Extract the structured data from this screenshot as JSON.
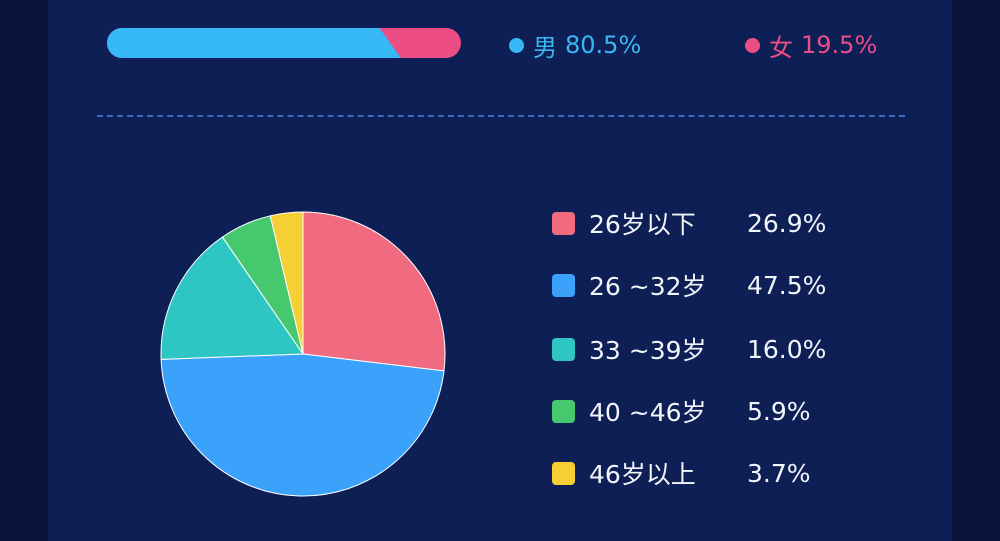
{
  "gender": {
    "male": {
      "label": "男",
      "value": "80.5%",
      "fraction": 0.805,
      "color": "#36b8f4"
    },
    "female": {
      "label": "女",
      "value": "19.5%",
      "fraction": 0.195,
      "color": "#ec4d85"
    }
  },
  "chart_data": [
    {
      "type": "bar",
      "orientation": "horizontal-stacked",
      "categories": [
        "男",
        "女"
      ],
      "values": [
        80.5,
        19.5
      ],
      "colors": [
        "#36b8f4",
        "#ec4d85"
      ],
      "legend": "right"
    },
    {
      "type": "pie",
      "categories": [
        "26岁以下",
        "26 ~32岁",
        "33 ~39岁",
        "40 ~46岁",
        "46岁以上"
      ],
      "values": [
        26.9,
        47.5,
        16.0,
        5.9,
        3.7
      ],
      "labels": [
        "26.9%",
        "47.5%",
        "16.0%",
        "5.9%",
        "3.7%"
      ],
      "colors": [
        "#f06b80",
        "#3aa2fa",
        "#2ec6c3",
        "#46c86e",
        "#f6cf34"
      ],
      "start": "top",
      "direction": "clockwise",
      "legend": "right"
    }
  ]
}
